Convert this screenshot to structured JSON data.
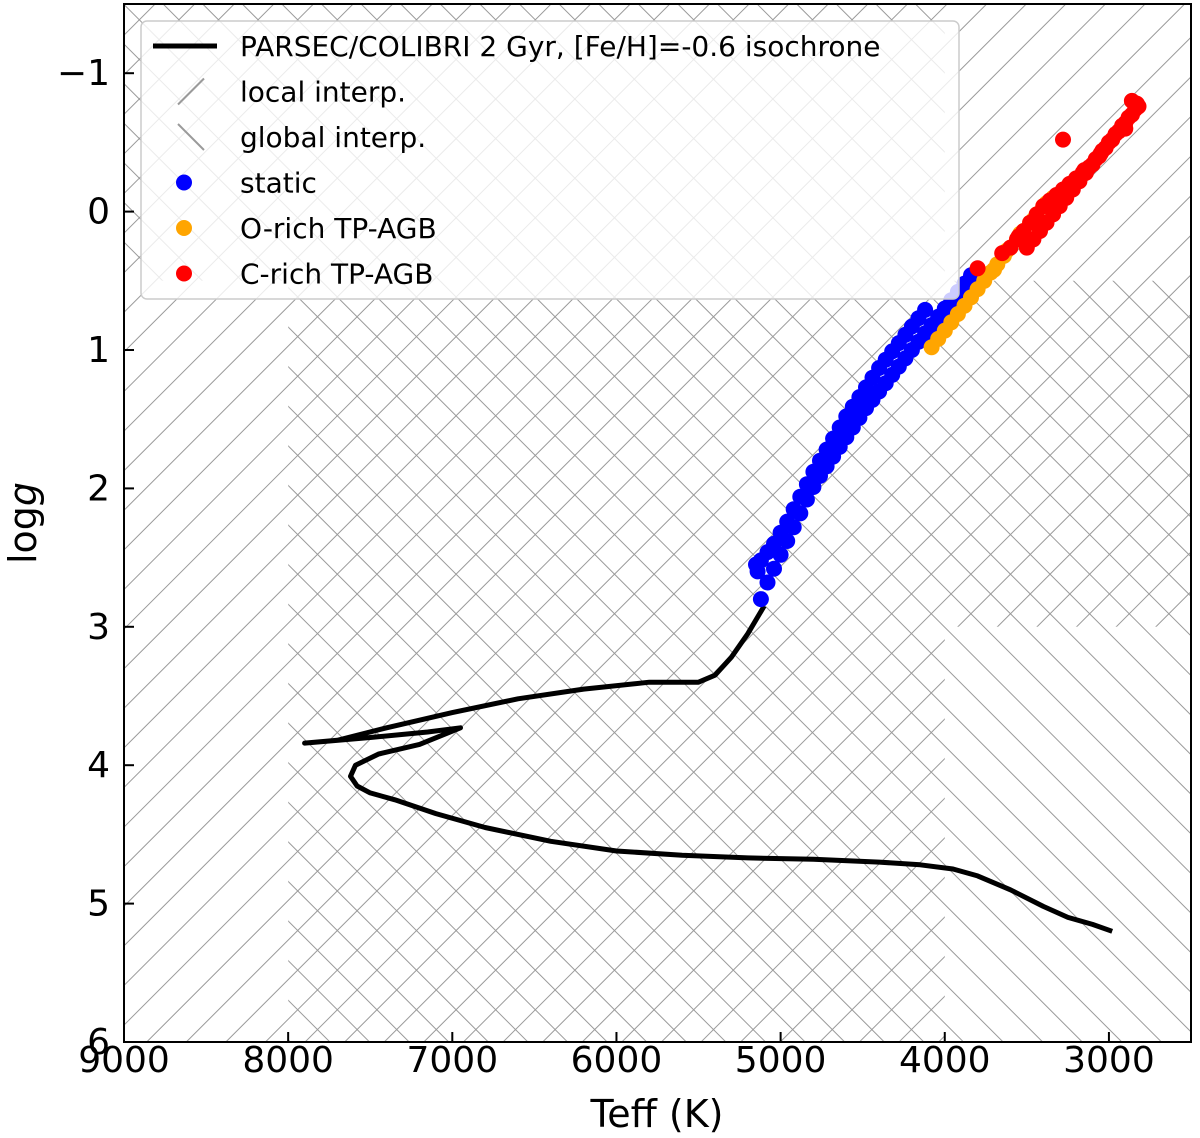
{
  "chart_data": {
    "type": "scatter",
    "xlabel": "Teff (K)",
    "ylabel_prefix": "log",
    "ylabel_var": "g",
    "xlim": [
      9000,
      2500
    ],
    "ylim": [
      6,
      -1.5
    ],
    "xticks": [
      9000,
      8000,
      7000,
      6000,
      5000,
      4000,
      3000
    ],
    "yticks": [
      6,
      5,
      4,
      3,
      2,
      1,
      0,
      -1
    ],
    "xtick_labels": [
      "9000",
      "8000",
      "7000",
      "6000",
      "5000",
      "4000",
      "3000"
    ],
    "ytick_labels": [
      "6",
      "5",
      "4",
      "3",
      "2",
      "1",
      "0",
      "−1"
    ],
    "legend_position": "upper-left",
    "regions": [
      {
        "name": "local interp.",
        "hatch": "/",
        "color": "#9a9a9a",
        "polygon": [
          [
            9000,
            6
          ],
          [
            9000,
            -1.5
          ],
          [
            2500,
            -1.5
          ],
          [
            2500,
            3
          ],
          [
            4000,
            3
          ],
          [
            4000,
            6
          ]
        ]
      },
      {
        "name": "global interp.",
        "hatch": "\\",
        "color": "#9a9a9a",
        "polygon": [
          [
            8000,
            6
          ],
          [
            8000,
            0.5
          ],
          [
            2500,
            0.5
          ],
          [
            2500,
            6
          ]
        ]
      },
      {
        "name": "global interp.",
        "hatch": "\\",
        "color": "#9a9a9a",
        "polygon": [
          [
            9000,
            -1.5
          ],
          [
            4000,
            -1.5
          ],
          [
            4000,
            0.5
          ],
          [
            9000,
            0.5
          ]
        ]
      }
    ],
    "series": [
      {
        "name": "PARSEC/COLIBRI 2 Gyr, [Fe/H]=-0.6 isochrone",
        "kind": "line",
        "color": "#000000",
        "x": [
          2980,
          3100,
          3250,
          3400,
          3600,
          3800,
          3950,
          4150,
          4400,
          4800,
          5200,
          5600,
          6000,
          6400,
          6800,
          7100,
          7350,
          7500,
          7580,
          7620,
          7590,
          7450,
          7200,
          6950,
          7150,
          7500,
          7900,
          7700,
          7400,
          7000,
          6600,
          6200,
          5800,
          5500,
          5400,
          5300,
          5200,
          5100
        ],
        "y": [
          5.2,
          5.15,
          5.1,
          5.02,
          4.9,
          4.8,
          4.75,
          4.72,
          4.7,
          4.68,
          4.67,
          4.65,
          4.62,
          4.55,
          4.45,
          4.35,
          4.25,
          4.2,
          4.15,
          4.08,
          4.0,
          3.92,
          3.85,
          3.73,
          3.76,
          3.8,
          3.84,
          3.82,
          3.73,
          3.62,
          3.52,
          3.45,
          3.4,
          3.4,
          3.35,
          3.22,
          3.05,
          2.85
        ]
      },
      {
        "name": "static",
        "kind": "scatter",
        "color": "#0000ff",
        "x": [
          5120,
          5080,
          5040,
          5000,
          4960,
          4920,
          4880,
          4840,
          4800,
          4760,
          4720,
          4680,
          4640,
          4600,
          4560,
          4520,
          4480,
          4440,
          4400,
          4360,
          4320,
          4280,
          4240,
          4200,
          4160,
          4120,
          4080,
          4040,
          4000,
          3960,
          3920,
          3880,
          3840,
          5120,
          5080,
          5040,
          5000,
          4960,
          4920,
          4880,
          4840,
          4800,
          4760,
          4720,
          4680,
          4640,
          4600,
          4560,
          4520,
          4480,
          4440,
          4400,
          4360,
          4320,
          4280,
          4240,
          4200,
          4160,
          4120,
          5150,
          5140
        ],
        "y": [
          2.8,
          2.68,
          2.58,
          2.48,
          2.38,
          2.28,
          2.18,
          2.08,
          1.99,
          1.91,
          1.84,
          1.77,
          1.7,
          1.63,
          1.56,
          1.49,
          1.42,
          1.36,
          1.3,
          1.24,
          1.18,
          1.12,
          1.06,
          1.0,
          0.94,
          0.88,
          0.82,
          0.76,
          0.7,
          0.64,
          0.58,
          0.52,
          0.46,
          2.52,
          2.46,
          2.4,
          2.32,
          2.24,
          2.15,
          2.06,
          1.97,
          1.88,
          1.8,
          1.72,
          1.64,
          1.56,
          1.48,
          1.41,
          1.34,
          1.27,
          1.2,
          1.13,
          1.07,
          1.01,
          0.95,
          0.89,
          0.83,
          0.77,
          0.71,
          2.55,
          2.6
        ]
      },
      {
        "name": "O-rich TP-AGB",
        "kind": "scatter",
        "color": "#ffa500",
        "x": [
          4080,
          4040,
          4000,
          3960,
          3920,
          3880,
          3840,
          3800,
          3760,
          3720,
          3680,
          3640,
          3600,
          3560,
          3520,
          3480,
          3440,
          3400,
          3380,
          3360,
          3340,
          3460,
          3540,
          3620,
          3700
        ],
        "y": [
          0.98,
          0.92,
          0.86,
          0.8,
          0.74,
          0.68,
          0.62,
          0.56,
          0.5,
          0.44,
          0.38,
          0.32,
          0.26,
          0.2,
          0.14,
          0.08,
          0.02,
          -0.04,
          -0.06,
          -0.08,
          -0.1,
          0.06,
          0.16,
          0.28,
          0.42
        ]
      },
      {
        "name": "C-rich TP-AGB",
        "kind": "scatter",
        "color": "#ff0000",
        "x": [
          3800,
          3650,
          3600,
          3560,
          3520,
          3480,
          3440,
          3400,
          3360,
          3320,
          3280,
          3240,
          3200,
          3160,
          3120,
          3080,
          3040,
          3000,
          2960,
          2920,
          2880,
          2840,
          2820,
          2860,
          2900,
          2940,
          2980,
          3020,
          3060,
          3100,
          3140,
          3180,
          3220,
          3260,
          3300,
          3340,
          3380,
          3420,
          3460,
          3500,
          3280,
          2860,
          2830,
          2900,
          3050,
          3150,
          3250,
          3350,
          3450,
          3550
        ],
        "y": [
          0.41,
          0.3,
          0.26,
          0.2,
          0.14,
          0.08,
          0.02,
          -0.04,
          -0.08,
          -0.12,
          -0.16,
          -0.2,
          -0.24,
          -0.28,
          -0.32,
          -0.38,
          -0.44,
          -0.5,
          -0.56,
          -0.62,
          -0.68,
          -0.74,
          -0.76,
          -0.7,
          -0.64,
          -0.58,
          -0.52,
          -0.46,
          -0.4,
          -0.34,
          -0.28,
          -0.22,
          -0.16,
          -0.1,
          -0.04,
          0.02,
          0.08,
          0.14,
          0.2,
          0.26,
          -0.52,
          -0.8,
          -0.78,
          -0.6,
          -0.42,
          -0.3,
          -0.18,
          -0.06,
          0.06,
          0.18
        ]
      }
    ]
  },
  "legend": {
    "entries": [
      {
        "label": "PARSEC/COLIBRI 2 Gyr, [Fe/H]=-0.6 isochrone",
        "kind": "line",
        "color": "#000000"
      },
      {
        "label": "local interp.",
        "kind": "hatch-fwd",
        "color": "#9a9a9a"
      },
      {
        "label": "global interp.",
        "kind": "hatch-back",
        "color": "#9a9a9a"
      },
      {
        "label": "static",
        "kind": "dot",
        "color": "#0000ff"
      },
      {
        "label": "O-rich TP-AGB",
        "kind": "dot",
        "color": "#ffa500"
      },
      {
        "label": "C-rich TP-AGB",
        "kind": "dot",
        "color": "#ff0000"
      }
    ]
  }
}
